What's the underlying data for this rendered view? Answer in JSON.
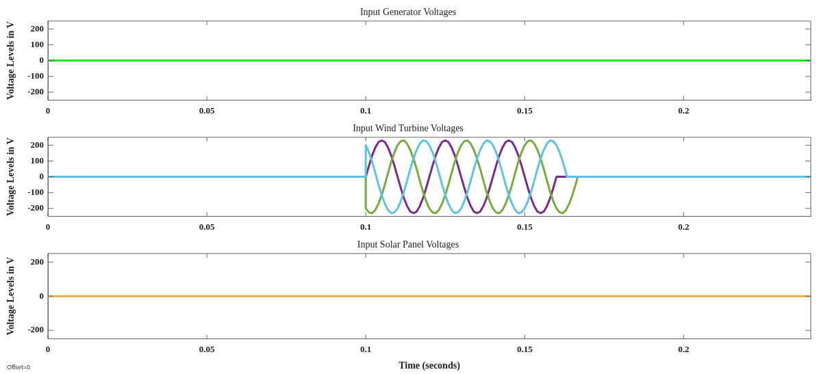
{
  "chart_data": [
    {
      "type": "line",
      "title": "Input Generator Voltages",
      "ylabel": "Voltage Levels in V",
      "xlim": [
        0,
        0.24
      ],
      "xticks": [
        0,
        0.05,
        0.1,
        0.15,
        0.2
      ],
      "ylim": [
        -250,
        250
      ],
      "yticks": [
        -200,
        -100,
        0,
        100,
        200
      ],
      "grid": false,
      "legend": false,
      "series": [
        {
          "color": "#1ee61e",
          "x": [
            0,
            0.24
          ],
          "values": [
            0,
            0
          ]
        }
      ]
    },
    {
      "type": "line",
      "title": "Input Wind Turbine Voltages",
      "ylabel": "Voltage Levels in V",
      "xlim": [
        0,
        0.24
      ],
      "xticks": [
        0,
        0.05,
        0.1,
        0.15,
        0.2
      ],
      "ylim": [
        -250,
        250
      ],
      "yticks": [
        -200,
        -100,
        0,
        100,
        200
      ],
      "grid": false,
      "legend": false,
      "series": [
        {
          "color": "#7b2a8a",
          "x": [
            0.1,
            0.101,
            0.102,
            0.103,
            0.104,
            0.105,
            0.106,
            0.107,
            0.108,
            0.109,
            0.11,
            0.111,
            0.112,
            0.113,
            0.114,
            0.115,
            0.116,
            0.117,
            0.118,
            0.119,
            0.12,
            0.121,
            0.122,
            0.123,
            0.124,
            0.125,
            0.126,
            0.127,
            0.128,
            0.129,
            0.13,
            0.131,
            0.132,
            0.133,
            0.134,
            0.135,
            0.136,
            0.137,
            0.138,
            0.139,
            0.14,
            0.141,
            0.142,
            0.143,
            0.144,
            0.145,
            0.146,
            0.147,
            0.148,
            0.149,
            0.15,
            0.151,
            0.152,
            0.153,
            0.154,
            0.155,
            0.156,
            0.157,
            0.158,
            0.159,
            0.16,
            0.24
          ],
          "values": [
            0,
            70,
            135,
            185,
            220,
            230,
            220,
            185,
            135,
            70,
            0,
            -70,
            -135,
            -185,
            -220,
            -230,
            -220,
            -185,
            -135,
            -70,
            0,
            70,
            135,
            185,
            220,
            230,
            220,
            185,
            135,
            70,
            0,
            -70,
            -135,
            -185,
            -220,
            -230,
            -220,
            -185,
            -135,
            -70,
            0,
            70,
            135,
            185,
            220,
            230,
            220,
            185,
            135,
            70,
            0,
            -70,
            -135,
            -185,
            -220,
            -230,
            -220,
            -185,
            -135,
            -70,
            0,
            0
          ]
        },
        {
          "color": "#77ab3c",
          "x": [
            0,
            0.1,
            0.1,
            0.101,
            0.102,
            0.103,
            0.104,
            0.105,
            0.106,
            0.107,
            0.108,
            0.109,
            0.11,
            0.111,
            0.112,
            0.113,
            0.114,
            0.115,
            0.116,
            0.117,
            0.118,
            0.119,
            0.12,
            0.121,
            0.122,
            0.123,
            0.124,
            0.125,
            0.126,
            0.127,
            0.128,
            0.129,
            0.13,
            0.131,
            0.132,
            0.133,
            0.134,
            0.135,
            0.136,
            0.137,
            0.138,
            0.139,
            0.14,
            0.141,
            0.142,
            0.143,
            0.144,
            0.145,
            0.146,
            0.147,
            0.148,
            0.149,
            0.15,
            0.151,
            0.152,
            0.153,
            0.154,
            0.155,
            0.156,
            0.157,
            0.158,
            0.159,
            0.16,
            0.161,
            0.162,
            0.163,
            0.164,
            0.165,
            0.166,
            0.1667,
            0.24
          ],
          "values": [
            0,
            0,
            -200,
            -225,
            -230,
            -210,
            -170,
            -115,
            -50,
            25,
            95,
            155,
            200,
            225,
            230,
            210,
            170,
            115,
            50,
            -25,
            -95,
            -155,
            -200,
            -225,
            -230,
            -210,
            -170,
            -115,
            -50,
            25,
            95,
            155,
            200,
            225,
            230,
            210,
            170,
            115,
            50,
            -25,
            -95,
            -155,
            -200,
            -225,
            -230,
            -210,
            -170,
            -115,
            -50,
            25,
            95,
            155,
            200,
            225,
            230,
            210,
            170,
            115,
            50,
            -25,
            -95,
            -155,
            -200,
            -225,
            -230,
            -210,
            -170,
            -115,
            -50,
            0,
            0
          ]
        },
        {
          "color": "#5bc3e8",
          "x": [
            0,
            0.1,
            0.1,
            0.101,
            0.102,
            0.103,
            0.104,
            0.105,
            0.106,
            0.107,
            0.108,
            0.109,
            0.11,
            0.111,
            0.112,
            0.113,
            0.114,
            0.115,
            0.116,
            0.117,
            0.118,
            0.119,
            0.12,
            0.121,
            0.122,
            0.123,
            0.124,
            0.125,
            0.126,
            0.127,
            0.128,
            0.129,
            0.13,
            0.131,
            0.132,
            0.133,
            0.134,
            0.135,
            0.136,
            0.137,
            0.138,
            0.139,
            0.14,
            0.141,
            0.142,
            0.143,
            0.144,
            0.145,
            0.146,
            0.147,
            0.148,
            0.149,
            0.15,
            0.151,
            0.152,
            0.153,
            0.154,
            0.155,
            0.156,
            0.157,
            0.158,
            0.159,
            0.16,
            0.161,
            0.162,
            0.163,
            0.1633,
            0.24
          ],
          "values": [
            0,
            0,
            200,
            155,
            95,
            25,
            -50,
            -115,
            -170,
            -210,
            -230,
            -225,
            -200,
            -155,
            -95,
            -25,
            50,
            115,
            170,
            210,
            230,
            225,
            200,
            155,
            95,
            25,
            -50,
            -115,
            -170,
            -210,
            -230,
            -225,
            -200,
            -155,
            -95,
            -25,
            50,
            115,
            170,
            210,
            230,
            225,
            200,
            155,
            95,
            25,
            -50,
            -115,
            -170,
            -210,
            -230,
            -225,
            -200,
            -155,
            -95,
            -25,
            50,
            115,
            170,
            210,
            230,
            225,
            200,
            155,
            95,
            25,
            0,
            0
          ]
        }
      ]
    },
    {
      "type": "line",
      "title": "Input Solar Panel Voltages",
      "ylabel": "Voltage Levels in V",
      "xlabel": "Time (seconds)",
      "xlim": [
        0,
        0.24
      ],
      "xticks": [
        0,
        0.05,
        0.1,
        0.15,
        0.2
      ],
      "ylim": [
        -250,
        250
      ],
      "yticks": [
        -200,
        0,
        200
      ],
      "grid": false,
      "legend": false,
      "annotations": [
        "Offset=0"
      ],
      "series": [
        {
          "color": "#e6b040",
          "x": [
            0,
            0.24
          ],
          "values": [
            0,
            0
          ]
        }
      ]
    }
  ]
}
